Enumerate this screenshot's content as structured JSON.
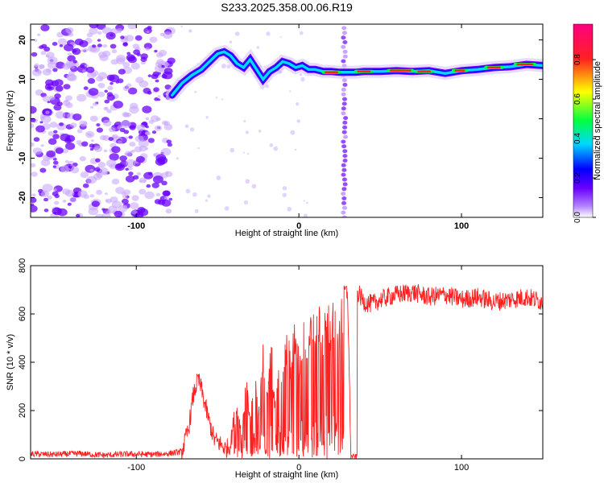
{
  "title": "S233.2025.358.00.06.R19",
  "chart_data": [
    {
      "type": "heatmap",
      "title": "S233.2025.358.00.06.R19",
      "xlabel": "Height of straight line (km)",
      "ylabel": "Frequency (Hz)",
      "xlim": [
        -165,
        150
      ],
      "ylim": [
        -25,
        24
      ],
      "x_ticks": [
        -100,
        0,
        100
      ],
      "y_ticks": [
        -20,
        -10,
        0,
        10,
        20
      ],
      "colorbar": {
        "label": "Normalized spectral amplitude",
        "ticks": [
          0.0,
          0.2,
          0.4,
          0.6,
          0.8
        ],
        "range": [
          0,
          0.98
        ],
        "colormap": [
          "#ffffff",
          "#b080ff",
          "#6a00ff",
          "#0000ff",
          "#00d8ff",
          "#00ff40",
          "#ffff00",
          "#ff2020",
          "#ff0080"
        ]
      },
      "tone_track": {
        "x": [
          -78,
          -72,
          -66,
          -60,
          -55,
          -50,
          -46,
          -42,
          -38,
          -34,
          -30,
          -26,
          -22,
          -18,
          -14,
          -10,
          -6,
          -2,
          2,
          6,
          10,
          15,
          20,
          25,
          30,
          35,
          40,
          50,
          60,
          70,
          80,
          90,
          100,
          110,
          120,
          130,
          140,
          150
        ],
        "y": [
          6,
          9,
          11,
          12.5,
          14.5,
          16.5,
          17,
          16,
          14,
          13,
          15,
          12.5,
          10,
          12,
          13,
          14.5,
          14,
          13,
          13.5,
          12.5,
          12.5,
          12,
          12,
          11.8,
          11.8,
          11.8,
          12,
          12,
          12.2,
          12,
          12.2,
          11.5,
          12.2,
          12.5,
          13,
          13.2,
          13.8,
          13.5
        ]
      },
      "noise_region_x": [
        -165,
        -78
      ],
      "spike_x": 28
    },
    {
      "type": "line",
      "xlabel": "Height of straight line (km)",
      "ylabel": "SNR (10 * v/v)",
      "xlim": [
        -165,
        150
      ],
      "ylim": [
        0,
        800
      ],
      "x_ticks": [
        -100,
        0,
        100
      ],
      "y_ticks": [
        0,
        200,
        400,
        600,
        800
      ],
      "line_color": "#ff2020",
      "series": [
        {
          "x": [
            -165,
            -150,
            -135,
            -120,
            -105,
            -90,
            -80,
            -72,
            -68,
            -65,
            -62,
            -60,
            -58,
            -55,
            -52,
            -48,
            -45,
            -42,
            -38,
            -35,
            -32,
            -30,
            -27,
            -25,
            -22,
            -20,
            -17,
            -15,
            -12,
            -10,
            -7,
            -5,
            -2,
            0,
            3,
            5,
            8,
            10,
            13,
            15,
            18,
            20,
            23,
            25,
            28,
            30,
            32,
            34,
            36,
            40,
            45,
            50,
            60,
            70,
            80,
            90,
            100,
            110,
            120,
            130,
            140,
            150
          ],
          "y": [
            20,
            18,
            22,
            15,
            20,
            18,
            22,
            30,
            120,
            260,
            330,
            290,
            230,
            150,
            80,
            60,
            40,
            60,
            260,
            120,
            380,
            150,
            420,
            200,
            460,
            250,
            500,
            300,
            520,
            350,
            560,
            400,
            600,
            450,
            620,
            480,
            640,
            520,
            650,
            560,
            660,
            600,
            670,
            620,
            700,
            680,
            10,
            10,
            690,
            650,
            640,
            660,
            680,
            690,
            670,
            680,
            660,
            670,
            650,
            660,
            670,
            650
          ]
        }
      ]
    }
  ]
}
